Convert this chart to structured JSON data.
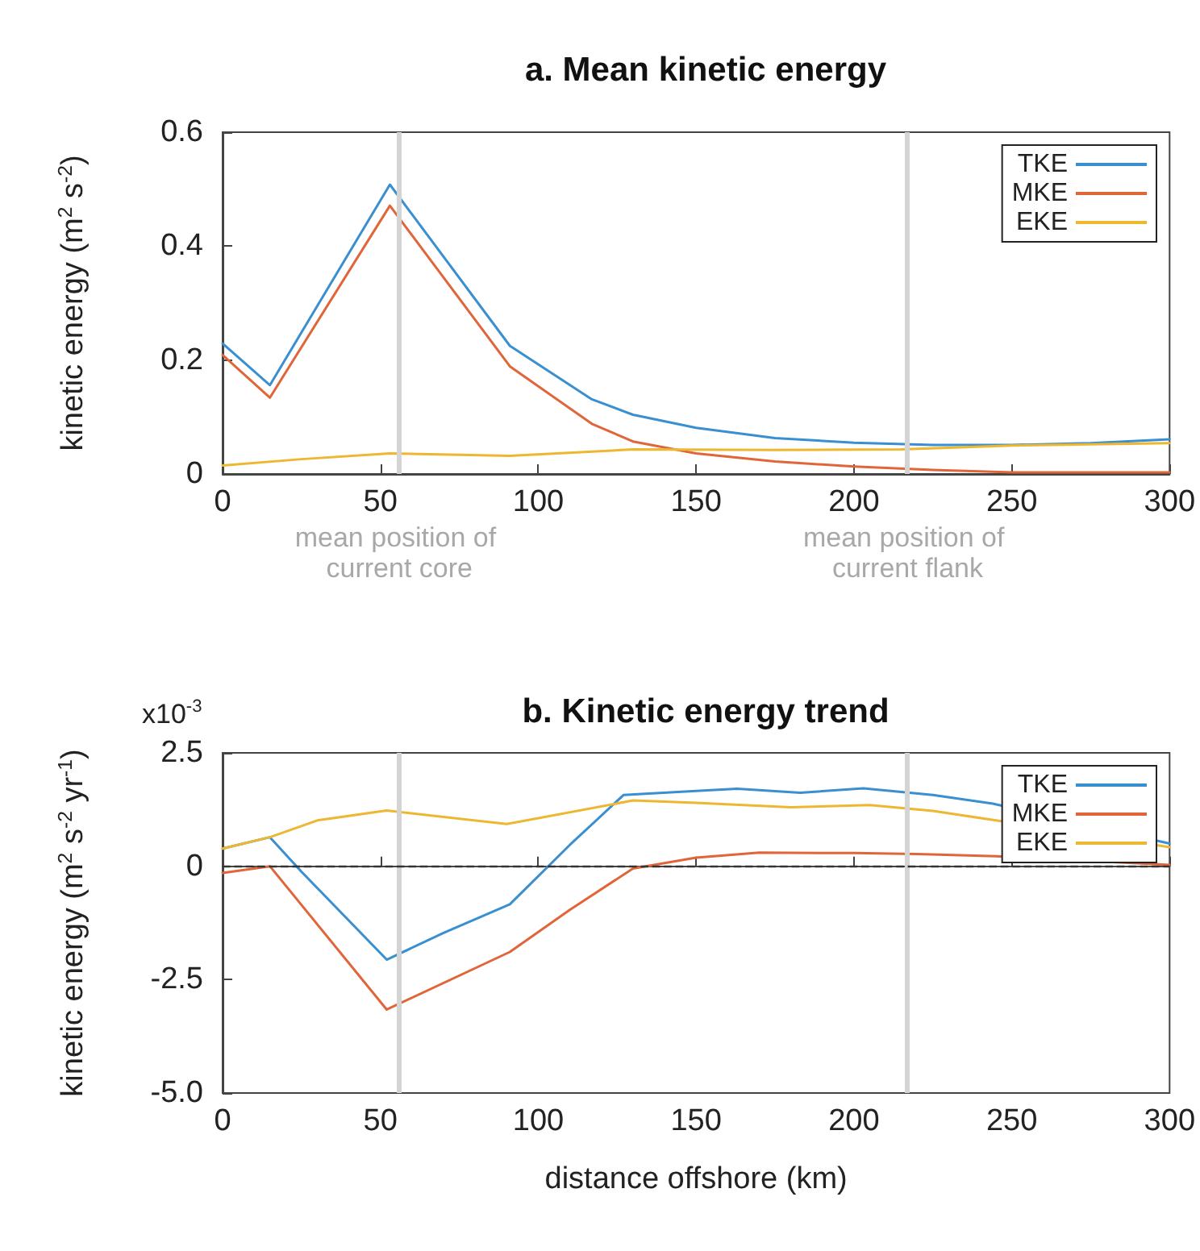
{
  "chart_data": [
    {
      "type": "line",
      "title": "a. Mean kinetic energy",
      "ylabel": "kinetic energy (m$^{2}$ s$^{-2}$)",
      "xlim": [
        0,
        300
      ],
      "xticks": [
        0,
        50,
        100,
        150,
        200,
        250,
        300
      ],
      "ylim": [
        0,
        0.6
      ],
      "yticks": [
        0,
        0.2,
        0.4,
        0.6
      ],
      "grid": false,
      "legend": "top right",
      "marker": "none",
      "line_style": "solid",
      "series": [
        {
          "name": "TKE",
          "color": "#3a8fd0",
          "x": [
            0,
            15,
            53,
            91,
            117,
            130,
            150,
            175,
            200,
            225,
            250,
            275,
            300
          ],
          "values": [
            0.229,
            0.156,
            0.508,
            0.225,
            0.131,
            0.104,
            0.081,
            0.063,
            0.055,
            0.051,
            0.051,
            0.054,
            0.061
          ]
        },
        {
          "name": "MKE",
          "color": "#e0663a",
          "x": [
            0,
            15,
            53,
            91,
            117,
            130,
            150,
            175,
            200,
            225,
            250,
            300
          ],
          "values": [
            0.209,
            0.134,
            0.471,
            0.189,
            0.088,
            0.057,
            0.036,
            0.022,
            0.013,
            0.007,
            0.003,
            0.003
          ]
        },
        {
          "name": "EKE",
          "color": "#edb731",
          "x": [
            0,
            25,
            53,
            91,
            130,
            175,
            215,
            250,
            300
          ],
          "values": [
            0.015,
            0.026,
            0.036,
            0.032,
            0.043,
            0.042,
            0.043,
            0.05,
            0.054
          ]
        }
      ],
      "ref_lines": [
        {
          "axis": "x",
          "value": 56,
          "label": "mean position of current core",
          "color": "#d4d4d4"
        },
        {
          "axis": "x",
          "value": 217,
          "label": "mean position of current flank",
          "color": "#d4d4d4"
        }
      ]
    },
    {
      "type": "line",
      "title": "b. Kinetic energy trend",
      "xlabel": "distance offshore (km)",
      "ylabel": "kinetic energy (m$^{2}$ s$^{-2}$ yr$^{-1}$)",
      "annotations": [
        "x10$^{-3}$"
      ],
      "xlim": [
        0,
        300
      ],
      "xticks": [
        0,
        50,
        100,
        150,
        200,
        250,
        300
      ],
      "ylim": [
        -5,
        2.5
      ],
      "yticks": [
        {
          "value": -5,
          "label": "-5.0"
        },
        -2.5,
        0,
        2.5
      ],
      "grid": false,
      "legend": "top right",
      "marker": "none",
      "line_style": "solid",
      "series": [
        {
          "name": "TKE",
          "color": "#3a8fd0",
          "x": [
            0,
            15,
            25,
            52,
            70,
            91,
            110,
            127,
            150,
            163,
            183,
            203,
            225,
            244,
            300
          ],
          "values": [
            0.39,
            0.64,
            -0.12,
            -2.06,
            -1.47,
            -0.84,
            0.47,
            1.57,
            1.66,
            1.71,
            1.62,
            1.72,
            1.57,
            1.38,
            0.5
          ]
        },
        {
          "name": "MKE",
          "color": "#e0663a",
          "x": [
            0,
            15,
            52,
            91,
            110,
            130,
            150,
            170,
            200,
            220,
            245,
            300
          ],
          "values": [
            -0.15,
            0,
            -3.16,
            -1.89,
            -0.96,
            -0.05,
            0.19,
            0.3,
            0.29,
            0.27,
            0.22,
            0.03
          ]
        },
        {
          "name": "EKE",
          "color": "#edb731",
          "x": [
            0,
            15,
            30,
            52,
            90,
            130,
            150,
            180,
            205,
            225,
            245,
            300
          ],
          "values": [
            0.39,
            0.64,
            1.01,
            1.23,
            0.93,
            1.45,
            1.4,
            1.3,
            1.35,
            1.22,
            1.01,
            0.42
          ]
        }
      ],
      "ref_lines": [
        {
          "axis": "x",
          "value": 56,
          "label": null,
          "color": "#d4d4d4"
        },
        {
          "axis": "x",
          "value": 217,
          "label": null,
          "color": "#d4d4d4"
        },
        {
          "axis": "y",
          "value": 0,
          "label": null,
          "color": "#333333",
          "line_style": "dashed"
        }
      ]
    }
  ]
}
